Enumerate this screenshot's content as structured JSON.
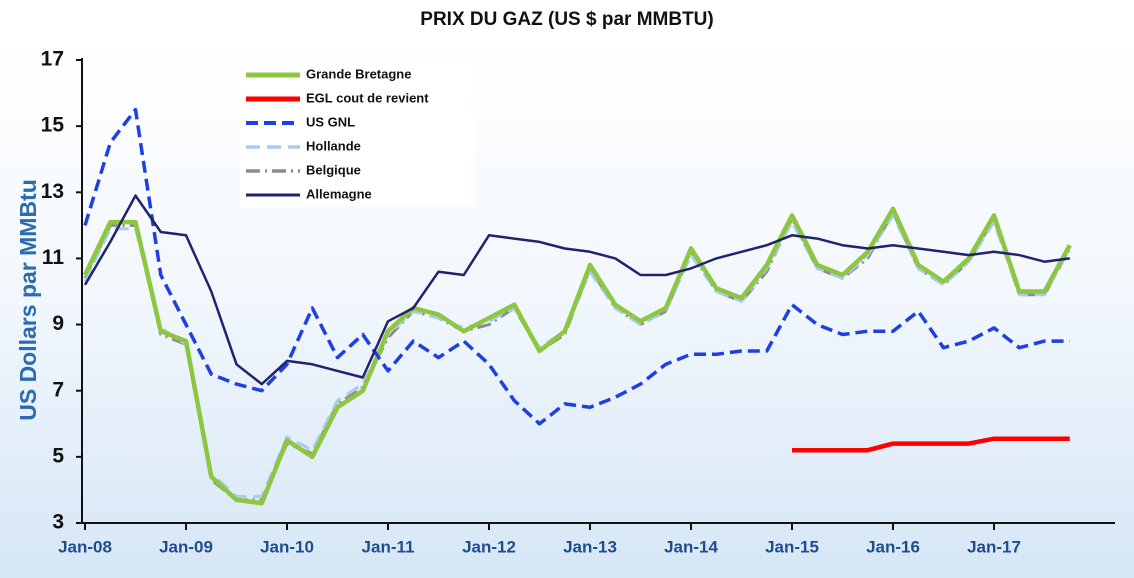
{
  "chart_data": {
    "type": "line",
    "title": "PRIX DU GAZ (US $ par MMBTU)",
    "y_label": "US Dollars par MMBtu",
    "categories": [
      "Jan-08",
      null,
      null,
      null,
      "Jan-09",
      null,
      null,
      null,
      "Jan-10",
      null,
      null,
      null,
      "Jan-11",
      null,
      null,
      null,
      "Jan-12",
      null,
      null,
      null,
      "Jan-13",
      null,
      null,
      null,
      "Jan-14",
      null,
      null,
      null,
      "Jan-15",
      null,
      null,
      null,
      "Jan-16",
      null,
      null,
      null,
      "Jan-17",
      null,
      null,
      null
    ],
    "ylim": [
      3,
      17
    ],
    "yticks": [
      3,
      5,
      7,
      9,
      11,
      13,
      15,
      17
    ],
    "grid": false,
    "legend": "upper left",
    "series": [
      {
        "name": "Grande Bretagne",
        "color": "#8dc63f",
        "values": [
          10.5,
          12.1,
          12.1,
          8.8,
          8.5,
          4.4,
          3.7,
          3.6,
          5.5,
          5.0,
          6.5,
          7.0,
          8.8,
          9.5,
          9.3,
          8.8,
          9.2,
          9.6,
          8.2,
          8.8,
          10.8,
          9.6,
          9.1,
          9.5,
          11.3,
          10.1,
          9.8,
          10.8,
          12.3,
          10.8,
          10.5,
          11.2,
          12.5,
          10.8,
          10.3,
          11.0,
          12.3,
          10.0,
          10.0,
          11.4
        ]
      },
      {
        "name": "EGL cout de revient",
        "color": "#ff0000",
        "values": [
          null,
          null,
          null,
          null,
          null,
          null,
          null,
          null,
          null,
          null,
          null,
          null,
          null,
          null,
          null,
          null,
          null,
          null,
          null,
          null,
          null,
          null,
          null,
          null,
          null,
          null,
          null,
          null,
          5.2,
          5.2,
          5.2,
          5.2,
          5.4,
          5.4,
          5.4,
          5.4,
          5.55,
          5.55,
          5.55,
          5.55
        ]
      },
      {
        "name": "US GNL",
        "color": "#1f3fe0",
        "values": [
          12.0,
          14.5,
          15.5,
          10.5,
          9.0,
          7.5,
          7.2,
          7.0,
          7.8,
          9.5,
          8.0,
          8.7,
          7.6,
          8.5,
          8.0,
          8.5,
          7.8,
          6.7,
          6.0,
          6.6,
          6.5,
          6.8,
          7.2,
          7.8,
          8.1,
          8.1,
          8.2,
          8.2,
          9.6,
          9.0,
          8.7,
          8.8,
          8.8,
          9.4,
          8.3,
          8.5,
          8.9,
          8.3,
          8.5,
          8.5
        ]
      },
      {
        "name": "Hollande",
        "color": "#a9cbef",
        "values": [
          10.3,
          11.9,
          11.9,
          8.9,
          8.4,
          4.5,
          3.8,
          3.8,
          5.6,
          5.2,
          6.7,
          7.2,
          8.7,
          9.4,
          9.2,
          8.9,
          9.1,
          9.5,
          8.3,
          8.8,
          10.6,
          9.5,
          9.0,
          9.4,
          11.1,
          10.0,
          9.7,
          10.7,
          12.1,
          10.7,
          10.4,
          11.1,
          12.3,
          10.7,
          10.2,
          10.9,
          12.1,
          9.9,
          9.9,
          11.3
        ]
      },
      {
        "name": "Belgique",
        "color": "#8c8c8c",
        "values": [
          10.4,
          12.0,
          12.0,
          8.7,
          8.4,
          4.3,
          3.7,
          3.7,
          5.4,
          5.1,
          6.6,
          7.1,
          8.6,
          9.4,
          9.2,
          8.8,
          9.0,
          9.5,
          8.2,
          8.7,
          10.7,
          9.5,
          9.0,
          9.4,
          11.2,
          10.0,
          9.7,
          10.6,
          12.2,
          10.7,
          10.4,
          11.0,
          12.4,
          10.7,
          10.2,
          10.9,
          12.2,
          9.9,
          9.9,
          11.3
        ]
      },
      {
        "name": "Allemagne",
        "color": "#22226e",
        "values": [
          10.2,
          11.5,
          12.9,
          11.8,
          11.7,
          10.0,
          7.8,
          7.2,
          7.9,
          7.8,
          7.6,
          7.4,
          9.1,
          9.5,
          10.6,
          10.5,
          11.7,
          11.6,
          11.5,
          11.3,
          11.2,
          11.0,
          10.5,
          10.5,
          10.7,
          11.0,
          11.2,
          11.4,
          11.7,
          11.6,
          11.4,
          11.3,
          11.4,
          11.3,
          11.2,
          11.1,
          11.2,
          11.1,
          10.9,
          11.0
        ]
      }
    ]
  }
}
